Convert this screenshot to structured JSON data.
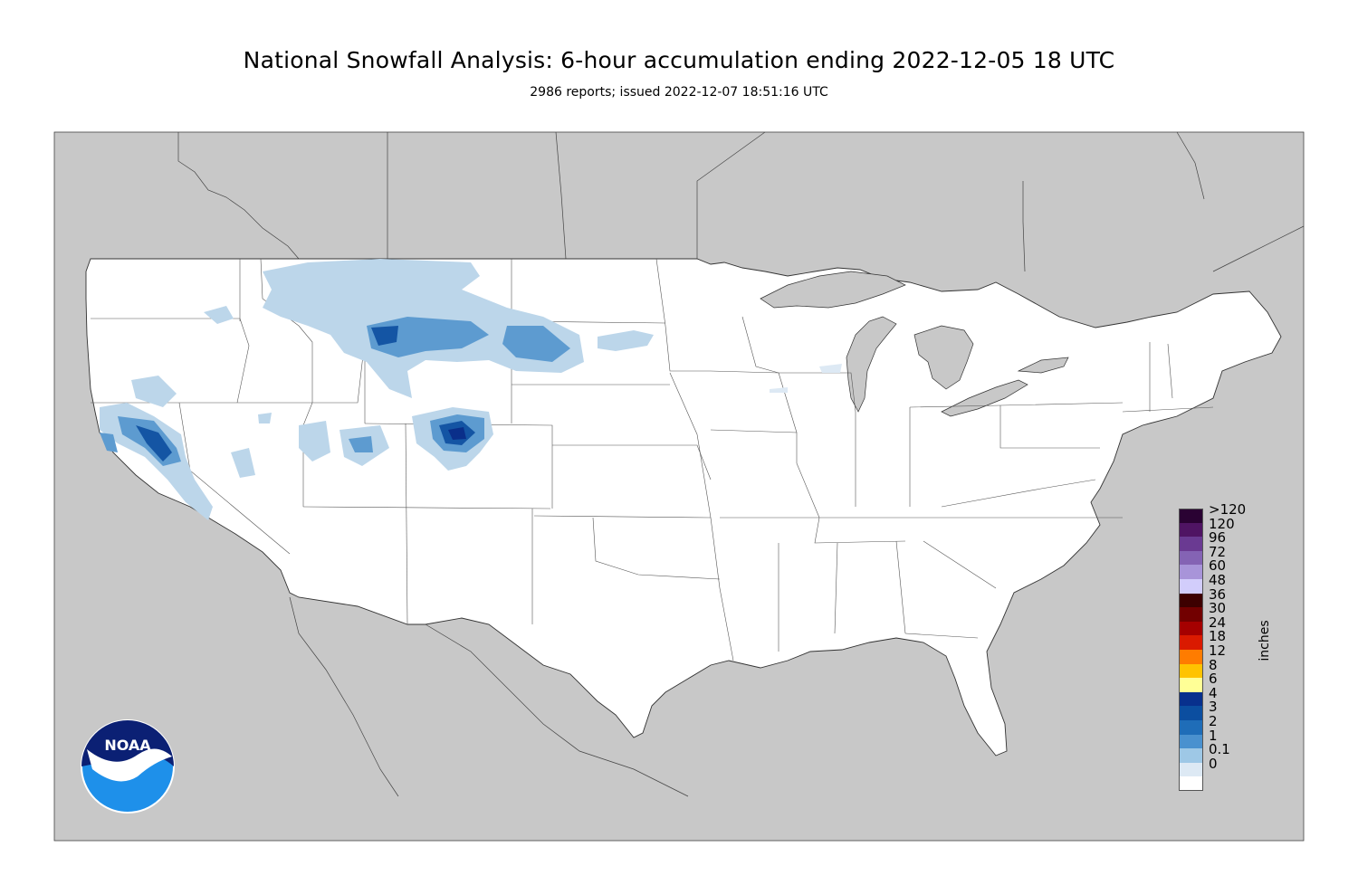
{
  "title": "National Snowfall Analysis: 6-hour accumulation ending 2022-12-05 18 UTC",
  "subtitle": "2986 reports; issued 2022-12-07 18:51:16 UTC",
  "logo": {
    "text": "NOAA",
    "icon": "noaa-logo-icon"
  },
  "map": {
    "background_color": "#c8c8c8",
    "land_color": "#ffffff",
    "water_color": "#c8c8c8",
    "snow_colors": {
      "light": "#bcd6ea",
      "medium": "#5d9bd0",
      "heavy": "#1455a4",
      "very_heavy": "#0a2f8a"
    }
  },
  "colorbar": {
    "units_label": "inches",
    "levels": [
      {
        "label": ">120",
        "color": "#2a0233"
      },
      {
        "label": "120",
        "color": "#4f1463"
      },
      {
        "label": "96",
        "color": "#6a3a92"
      },
      {
        "label": "72",
        "color": "#8463b4"
      },
      {
        "label": "60",
        "color": "#a894d9"
      },
      {
        "label": "48",
        "color": "#d2cdfb"
      },
      {
        "label": "36",
        "color": "#3d0000"
      },
      {
        "label": "30",
        "color": "#720000"
      },
      {
        "label": "24",
        "color": "#a50000"
      },
      {
        "label": "18",
        "color": "#da1a00"
      },
      {
        "label": "12",
        "color": "#ff7c00"
      },
      {
        "label": "8",
        "color": "#ffc300"
      },
      {
        "label": "6",
        "color": "#ffff96"
      },
      {
        "label": "4",
        "color": "#08308d"
      },
      {
        "label": "3",
        "color": "#0b4ea0"
      },
      {
        "label": "2",
        "color": "#1f6db8"
      },
      {
        "label": "1",
        "color": "#4a91cf"
      },
      {
        "label": "0.1",
        "color": "#9ec8e6"
      },
      {
        "label": "0",
        "color": "#dde9f4"
      },
      {
        "label": "",
        "color": "#ffffff"
      }
    ]
  }
}
